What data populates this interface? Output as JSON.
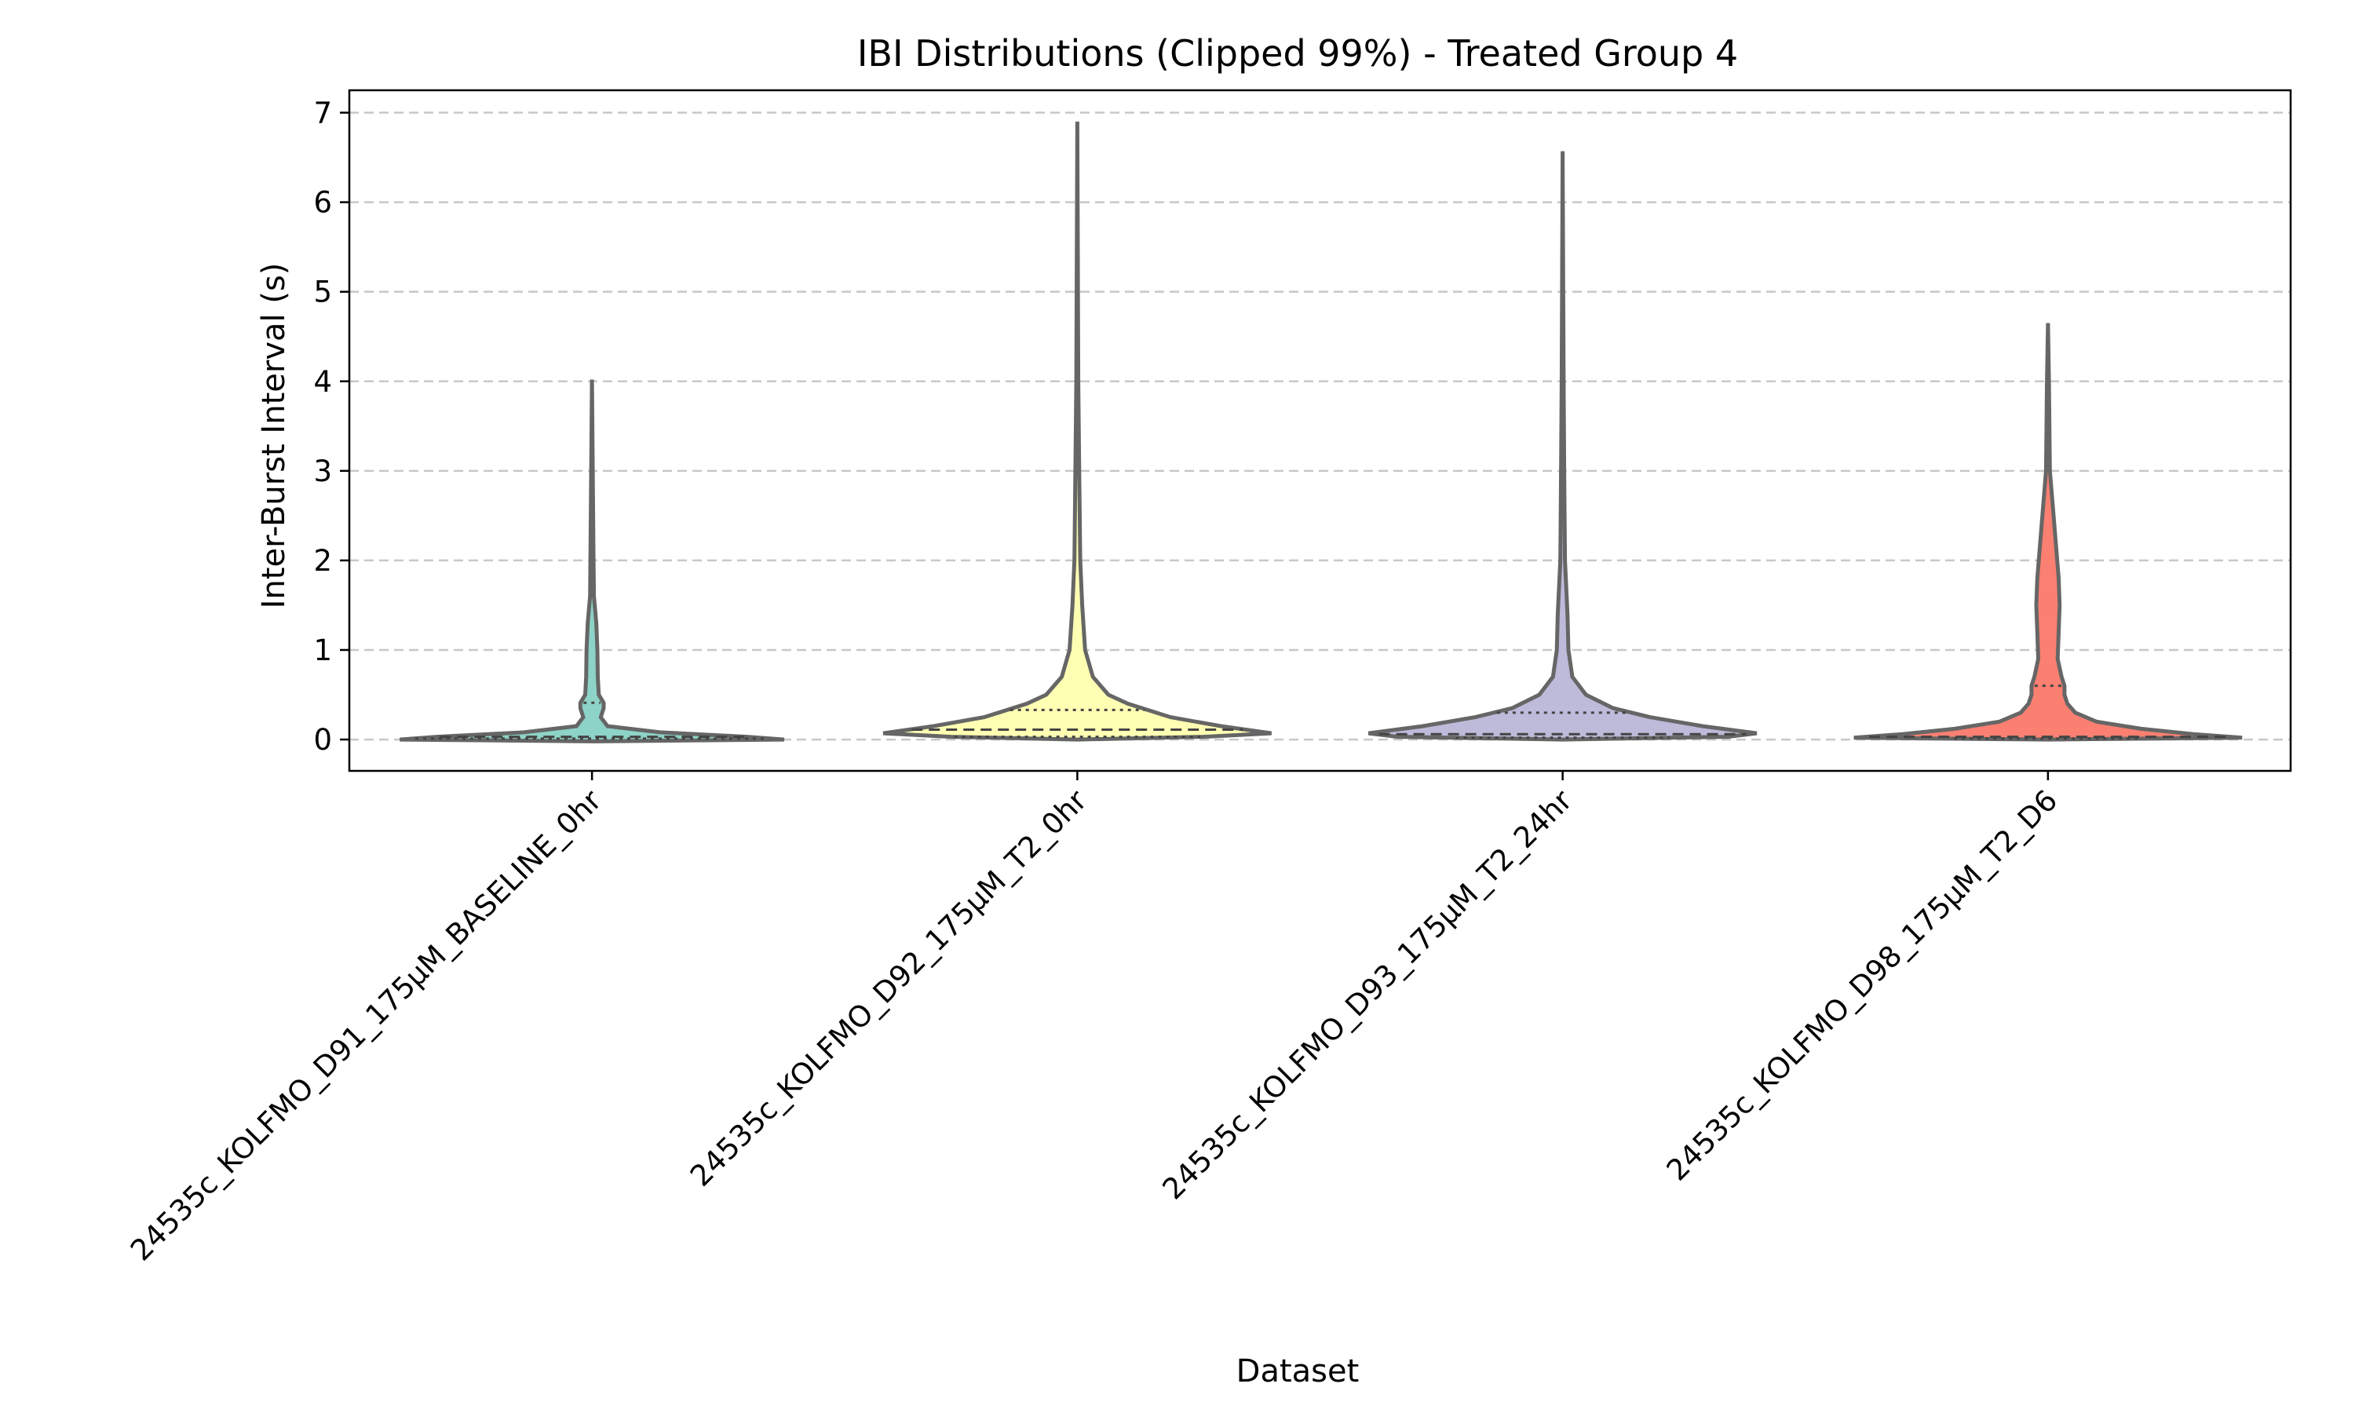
{
  "chart_data": {
    "type": "violin",
    "title": "IBI Distributions (Clipped 99%) - Treated Group 4",
    "xlabel": "Dataset",
    "ylabel": "Inter-Burst Interval (s)",
    "ylim": [
      -0.35,
      7.25
    ],
    "yticks": [
      0,
      1,
      2,
      3,
      4,
      5,
      6,
      7
    ],
    "grid": "horizontal dashed",
    "categories": [
      "24535c_KOLFMO_D91_175µM_BASELINE_0hr",
      "24535c_KOLFMO_D92_175µM_T2_0hr",
      "24535c_KOLFMO_D93_175µM_T2_24hr",
      "24535c_KOLFMO_D98_175µM_T2_D6"
    ],
    "colors": [
      "#8dd3c7",
      "#ffffb3",
      "#bebada",
      "#fb8072"
    ],
    "violins": [
      {
        "min": -0.02,
        "max": 4.02,
        "q1": 0.01,
        "median": 0.03,
        "q3": 0.41,
        "profile": [
          [
            -0.02,
            0.0
          ],
          [
            0.0,
            0.99
          ],
          [
            0.03,
            0.8
          ],
          [
            0.08,
            0.35
          ],
          [
            0.15,
            0.08
          ],
          [
            0.25,
            0.045
          ],
          [
            0.35,
            0.06
          ],
          [
            0.41,
            0.06
          ],
          [
            0.5,
            0.035
          ],
          [
            0.7,
            0.03
          ],
          [
            1.0,
            0.028
          ],
          [
            1.3,
            0.022
          ],
          [
            1.6,
            0.01
          ],
          [
            2.0,
            0.008
          ],
          [
            3.0,
            0.004
          ],
          [
            4.02,
            0.0
          ]
        ]
      },
      {
        "min": 0.0,
        "max": 6.9,
        "q1": 0.03,
        "median": 0.11,
        "q3": 0.33,
        "profile": [
          [
            0.0,
            0.0
          ],
          [
            0.03,
            0.65
          ],
          [
            0.07,
            1.0
          ],
          [
            0.15,
            0.74
          ],
          [
            0.25,
            0.48
          ],
          [
            0.4,
            0.26
          ],
          [
            0.5,
            0.16
          ],
          [
            0.7,
            0.08
          ],
          [
            1.0,
            0.04
          ],
          [
            1.5,
            0.025
          ],
          [
            2.0,
            0.015
          ],
          [
            3.0,
            0.01
          ],
          [
            4.0,
            0.005
          ],
          [
            6.9,
            0.0
          ]
        ]
      },
      {
        "min": 0.0,
        "max": 6.57,
        "q1": 0.02,
        "median": 0.06,
        "q3": 0.3,
        "profile": [
          [
            0.0,
            0.0
          ],
          [
            0.03,
            0.85
          ],
          [
            0.07,
            1.0
          ],
          [
            0.15,
            0.72
          ],
          [
            0.25,
            0.45
          ],
          [
            0.35,
            0.26
          ],
          [
            0.5,
            0.12
          ],
          [
            0.7,
            0.05
          ],
          [
            1.0,
            0.03
          ],
          [
            1.4,
            0.025
          ],
          [
            2.0,
            0.012
          ],
          [
            3.0,
            0.008
          ],
          [
            4.0,
            0.005
          ],
          [
            6.57,
            0.0
          ]
        ]
      },
      {
        "min": 0.0,
        "max": 4.65,
        "q1": 0.01,
        "median": 0.03,
        "q3": 0.6,
        "profile": [
          [
            0.0,
            0.0
          ],
          [
            0.02,
            1.0
          ],
          [
            0.06,
            0.75
          ],
          [
            0.12,
            0.48
          ],
          [
            0.2,
            0.25
          ],
          [
            0.3,
            0.14
          ],
          [
            0.4,
            0.1
          ],
          [
            0.5,
            0.085
          ],
          [
            0.6,
            0.085
          ],
          [
            0.7,
            0.07
          ],
          [
            0.9,
            0.05
          ],
          [
            1.2,
            0.055
          ],
          [
            1.5,
            0.06
          ],
          [
            1.8,
            0.055
          ],
          [
            2.2,
            0.04
          ],
          [
            2.6,
            0.025
          ],
          [
            3.0,
            0.01
          ],
          [
            4.0,
            0.005
          ],
          [
            4.65,
            0.0
          ]
        ]
      }
    ]
  }
}
